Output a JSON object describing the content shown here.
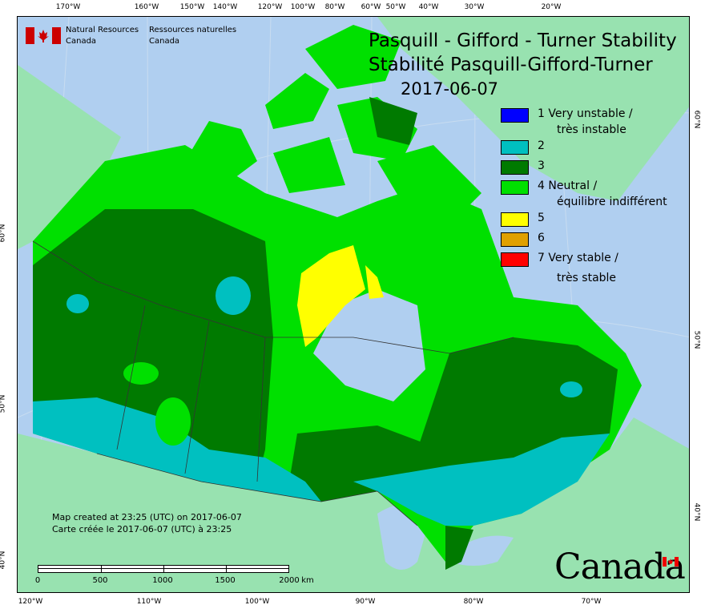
{
  "title": {
    "line1": "Pasquill - Gifford - Turner Stability",
    "line2": "Stabilité Pasquill-Gifford-Turner",
    "date": "2017-06-07"
  },
  "agency": {
    "en_line1": "Natural Resources",
    "en_line2": "Canada",
    "fr_line1": "Ressources naturelles",
    "fr_line2": "Canada"
  },
  "legend": [
    {
      "label": "1 Very unstable /",
      "label2": "très instable",
      "color": "#0000ff"
    },
    {
      "label": "2",
      "label2": "",
      "color": "#00c0c0"
    },
    {
      "label": "3",
      "label2": "",
      "color": "#007a00"
    },
    {
      "label": "4 Neutral /",
      "label2": "équilibre indifférent",
      "color": "#00e000"
    },
    {
      "label": "5",
      "label2": "",
      "color": "#ffff00"
    },
    {
      "label": "6",
      "label2": "",
      "color": "#e0a000"
    },
    {
      "label": "7 Very stable /",
      "label2": "très stable",
      "color": "#ff0000"
    }
  ],
  "note": {
    "en": "Map created at 23:25 (UTC) on 2017-06-07",
    "fr": "Carte créée le 2017-06-07 (UTC) à 23:25"
  },
  "scale_bar": {
    "labels": [
      "0",
      "500",
      "1000",
      "1500",
      "2000"
    ],
    "unit": "km"
  },
  "wordmark": "Canada",
  "axes": {
    "top": [
      "170°W",
      "160°W",
      "150°W",
      "140°W",
      "120°W",
      "100°W",
      "80°W",
      "60°W",
      "50°W",
      "40°W",
      "30°W",
      "20°W"
    ],
    "bottom": [
      "120°W",
      "110°W",
      "100°W",
      "90°W",
      "80°W",
      "70°W"
    ],
    "left": [
      "60°N",
      "50°N",
      "40°N"
    ],
    "right": [
      "60°N",
      "50°N",
      "40°N"
    ]
  },
  "colors": {
    "ocean": "#b0cff0",
    "other_land": "#98e2b0",
    "water_in_canada": "#b0cff0"
  }
}
